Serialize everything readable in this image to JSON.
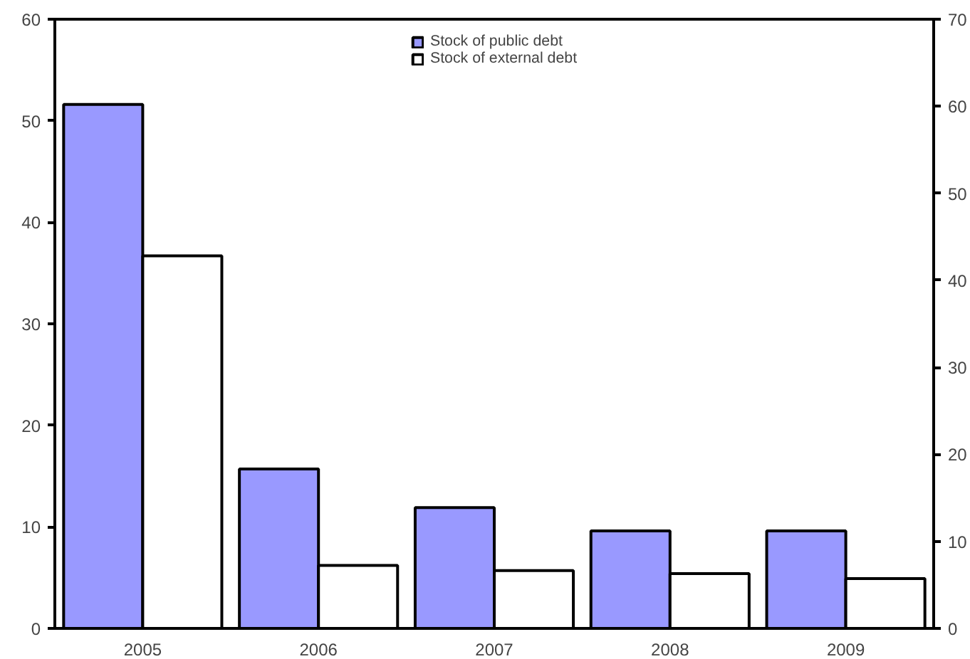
{
  "chart_data": {
    "type": "bar",
    "categories": [
      "2005",
      "2006",
      "2007",
      "2008",
      "2009"
    ],
    "series": [
      {
        "name": "Stock of public debt",
        "color": "#9999ff",
        "values": [
          51.6,
          15.7,
          11.9,
          9.6,
          9.6
        ]
      },
      {
        "name": "Stock of external debt",
        "color": "#ffffff",
        "values": [
          36.7,
          6.2,
          5.7,
          5.4,
          4.9
        ]
      }
    ],
    "ylim": [
      0,
      60
    ],
    "yticks": [
      0,
      10,
      20,
      30,
      40,
      50,
      60
    ],
    "y2lim": [
      0,
      70
    ],
    "y2ticks": [
      0,
      10,
      20,
      30,
      40,
      50,
      60,
      70
    ],
    "grid": false,
    "legend": "top"
  }
}
